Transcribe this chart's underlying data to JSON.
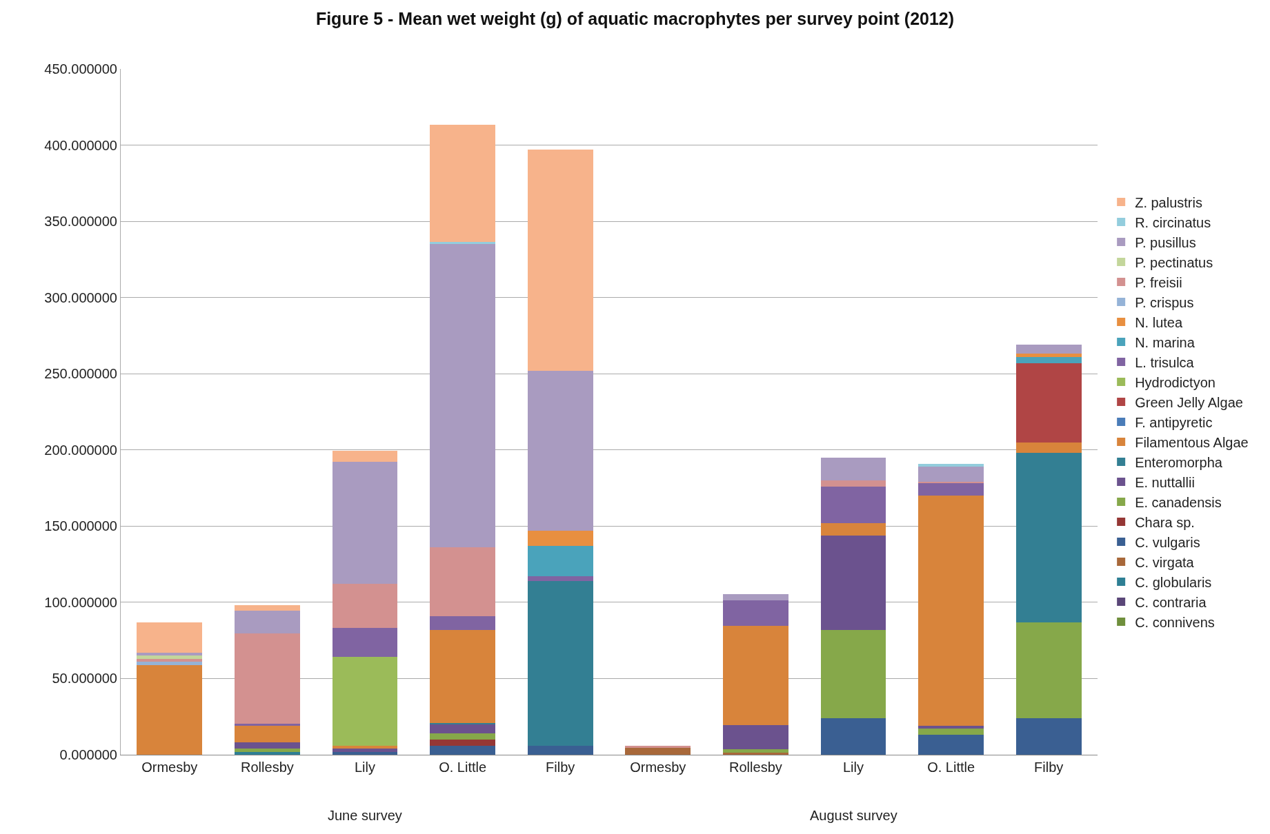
{
  "chart_data": {
    "type": "bar",
    "stacked": true,
    "title": "Figure 5 - Mean wet weight (g) of aquatic macrophytes per survey point (2012)",
    "categories": [
      "Ormesby",
      "Rollesby",
      "Lily",
      "O. Little",
      "Filby",
      "Ormesby",
      "Rollesby",
      "Lily",
      "O. Little",
      "Filby"
    ],
    "annotations": [
      "June survey",
      "August survey"
    ],
    "ylim": [
      0,
      450
    ],
    "yticks": [
      {
        "value": 0,
        "label": "0.000000"
      },
      {
        "value": 50,
        "label": "50.000000"
      },
      {
        "value": 100,
        "label": "100.000000"
      },
      {
        "value": 150,
        "label": "150.000000"
      },
      {
        "value": 200,
        "label": "200.000000"
      },
      {
        "value": 250,
        "label": "250.000000"
      },
      {
        "value": 300,
        "label": "300.000000"
      },
      {
        "value": 350,
        "label": "350.000000"
      },
      {
        "value": 400,
        "label": "400.000000"
      },
      {
        "value": 450,
        "label": "450.000000"
      }
    ],
    "grid": "y",
    "legend": "right",
    "series": [
      {
        "name": "C. connivens",
        "color": "#6f8f3c",
        "values": [
          null,
          null,
          null,
          null,
          null,
          null,
          null,
          null,
          null,
          null
        ]
      },
      {
        "name": "C. contraria",
        "color": "#5a4678",
        "values": [
          null,
          null,
          null,
          null,
          null,
          null,
          null,
          null,
          null,
          null
        ]
      },
      {
        "name": "C. globularis",
        "color": "#2e7f94",
        "values": [
          null,
          2,
          null,
          null,
          null,
          null,
          null,
          null,
          null,
          null
        ]
      },
      {
        "name": "C. virgata",
        "color": "#a8683a",
        "values": [
          null,
          null,
          null,
          null,
          null,
          4.5,
          1.5,
          null,
          null,
          null
        ]
      },
      {
        "name": "C. vulgaris",
        "color": "#3a5f92",
        "values": [
          null,
          null,
          2,
          6,
          6,
          null,
          null,
          24,
          13,
          24
        ]
      },
      {
        "name": "Chara sp.",
        "color": "#953735",
        "values": [
          null,
          null,
          null,
          4,
          null,
          null,
          null,
          null,
          null,
          null
        ]
      },
      {
        "name": "E. canadensis",
        "color": "#86a84a",
        "values": [
          null,
          2,
          null,
          4,
          null,
          null,
          2,
          58,
          4,
          63
        ]
      },
      {
        "name": "E. nuttallii",
        "color": "#6b528e",
        "values": [
          null,
          4,
          2,
          6,
          null,
          null,
          16,
          62,
          2,
          null
        ]
      },
      {
        "name": "Enteromorpha",
        "color": "#337f93",
        "values": [
          null,
          null,
          null,
          1,
          108,
          null,
          null,
          null,
          null,
          111
        ]
      },
      {
        "name": "Filamentous Algae",
        "color": "#d8843b",
        "values": [
          59,
          11,
          2,
          61,
          null,
          null,
          65,
          8,
          151,
          7
        ]
      },
      {
        "name": "F. antipyretic",
        "color": "#4a7cb8",
        "values": [
          null,
          null,
          null,
          null,
          null,
          null,
          null,
          null,
          null,
          null
        ]
      },
      {
        "name": "Green Jelly Algae",
        "color": "#b04545",
        "values": [
          null,
          null,
          null,
          null,
          null,
          null,
          null,
          null,
          null,
          52
        ]
      },
      {
        "name": "Hydrodictyon",
        "color": "#9bbb59",
        "values": [
          null,
          null,
          58,
          null,
          null,
          null,
          null,
          null,
          null,
          null
        ]
      },
      {
        "name": "L. trisulca",
        "color": "#8064a2",
        "values": [
          null,
          1.5,
          19,
          9,
          3,
          null,
          17,
          24,
          8,
          null
        ]
      },
      {
        "name": "N. marina",
        "color": "#4aa3bb",
        "values": [
          null,
          null,
          null,
          null,
          20,
          null,
          null,
          null,
          null,
          4
        ]
      },
      {
        "name": "N. lutea",
        "color": "#e88f40",
        "values": [
          null,
          null,
          null,
          null,
          10,
          null,
          null,
          null,
          null,
          2
        ]
      },
      {
        "name": "P. crispus",
        "color": "#95b3d7",
        "values": [
          2,
          null,
          null,
          null,
          null,
          null,
          null,
          null,
          null,
          null
        ]
      },
      {
        "name": "P. freisii",
        "color": "#d39190",
        "values": [
          2,
          59,
          29,
          45,
          null,
          1.5,
          null,
          4,
          1,
          null
        ]
      },
      {
        "name": "P. pectinatus",
        "color": "#c3d69b",
        "values": [
          2,
          null,
          null,
          null,
          null,
          null,
          null,
          null,
          null,
          null
        ]
      },
      {
        "name": "P. pusillus",
        "color": "#a99bc0",
        "values": [
          2,
          15,
          80,
          199,
          105,
          null,
          4,
          15,
          10,
          6
        ]
      },
      {
        "name": "R. circinatus",
        "color": "#93cddd",
        "values": [
          null,
          null,
          null,
          1.5,
          null,
          null,
          null,
          null,
          2,
          null
        ]
      },
      {
        "name": "Z. palustris",
        "color": "#f7b38b",
        "values": [
          20,
          3.5,
          7.5,
          77,
          145,
          null,
          null,
          null,
          null,
          null
        ]
      }
    ]
  }
}
